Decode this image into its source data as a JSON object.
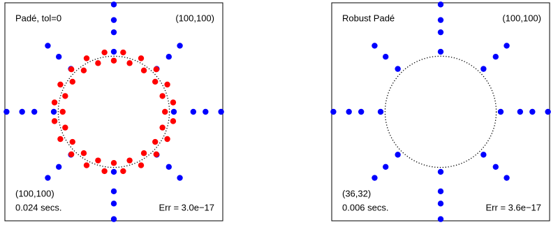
{
  "chart_data": [
    {
      "type": "scatter",
      "title": "Padé, tol=0",
      "degree": "(100,100)",
      "result_degree": "(100,100)",
      "time": "0.024 secs.",
      "error": "Err = 3.0e−17",
      "xlim": [
        -1.96,
        1.96
      ],
      "ylim": [
        -1.96,
        1.96
      ],
      "reference_circle": {
        "radius": 1,
        "style": "dotted"
      },
      "series": [
        {
          "color": "#0000ff",
          "x": [
            1.93,
            1.65,
            1.43,
            1.08,
            -1.93,
            -1.65,
            -1.43,
            -1.08,
            0,
            0,
            0,
            0,
            0,
            0,
            0,
            0,
            1.188,
            0.99,
            0.771,
            -1.188,
            -0.99,
            -0.771,
            -1.188,
            -0.99,
            -0.771,
            1.188,
            0.99,
            0.771
          ],
          "y": [
            0,
            0,
            0,
            0,
            0,
            0,
            0,
            0,
            1.93,
            1.65,
            1.43,
            1.08,
            -1.93,
            -1.65,
            -1.43,
            -1.08,
            1.188,
            0.99,
            0.771,
            1.188,
            0.99,
            0.771,
            -1.188,
            -0.99,
            -0.771,
            -1.188,
            -0.99,
            -0.771
          ]
        },
        {
          "color": "#ff0000",
          "x": [
            0.92,
            1.067,
            0.875,
            0.962,
            0.744,
            0.764,
            0.541,
            0.49,
            0.284,
            0.168,
            0,
            -0.168,
            -0.284,
            -0.49,
            -0.541,
            -0.764,
            -0.744,
            -0.962,
            -0.875,
            -1.067,
            -0.92,
            -1.067,
            -0.875,
            -0.962,
            -0.744,
            -0.764,
            -0.541,
            -0.49,
            -0.284,
            -0.168,
            0,
            0.168,
            0.284,
            0.49,
            0.541,
            0.764,
            0.744,
            0.962,
            0.875,
            1.067
          ],
          "y": [
            0,
            0.168,
            0.284,
            0.49,
            0.541,
            0.764,
            0.744,
            0.962,
            0.875,
            1.067,
            0.92,
            1.067,
            0.875,
            0.962,
            0.744,
            0.764,
            0.541,
            0.49,
            0.284,
            0.168,
            0,
            -0.168,
            -0.284,
            -0.49,
            -0.541,
            -0.764,
            -0.744,
            -0.962,
            -0.875,
            -1.067,
            -0.92,
            -1.067,
            -0.875,
            -0.962,
            -0.744,
            -0.764,
            -0.541,
            -0.49,
            -0.284,
            -0.168
          ]
        }
      ]
    },
    {
      "type": "scatter",
      "title": "Robust Padé",
      "degree": "(100,100)",
      "result_degree": "(36,32)",
      "time": "0.006 secs.",
      "error": "Err = 3.6e−17",
      "xlim": [
        -1.96,
        1.96
      ],
      "ylim": [
        -1.96,
        1.96
      ],
      "reference_circle": {
        "radius": 1,
        "style": "dotted"
      },
      "series": [
        {
          "color": "#0000ff",
          "x": [
            1.93,
            1.65,
            1.43,
            1.08,
            -1.93,
            -1.65,
            -1.43,
            -1.08,
            0,
            0,
            0,
            0,
            0,
            0,
            0,
            0,
            1.188,
            0.99,
            0.771,
            -1.188,
            -0.99,
            -0.771,
            -1.188,
            -0.99,
            -0.771,
            1.188,
            0.99,
            0.771
          ],
          "y": [
            0,
            0,
            0,
            0,
            0,
            0,
            0,
            0,
            1.93,
            1.65,
            1.43,
            1.08,
            -1.93,
            -1.65,
            -1.43,
            -1.08,
            1.188,
            0.99,
            0.771,
            1.188,
            0.99,
            0.771,
            -1.188,
            -0.99,
            -0.771,
            -1.188,
            -0.99,
            -0.771
          ]
        }
      ]
    }
  ]
}
